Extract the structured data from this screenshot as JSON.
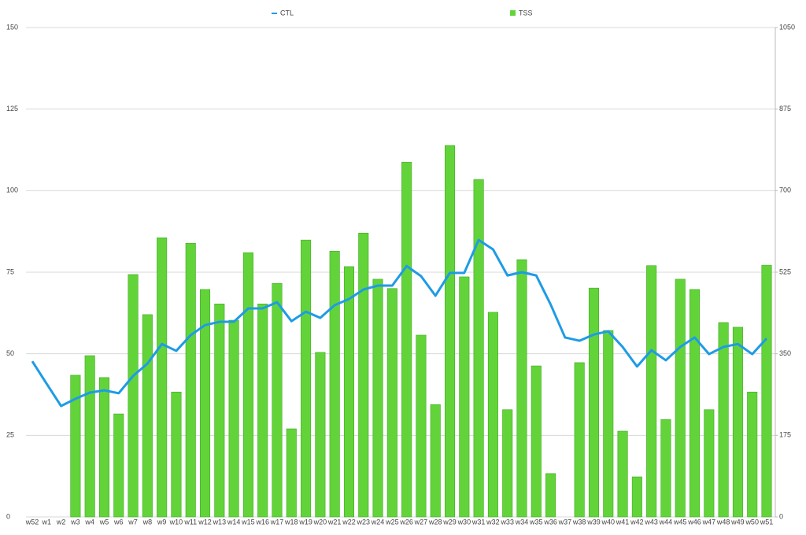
{
  "chart_data": {
    "type": "bar",
    "categories": [
      "w52",
      "w1",
      "w2",
      "w3",
      "w4",
      "w5",
      "w6",
      "w7",
      "w8",
      "w9",
      "w10",
      "w11",
      "w12",
      "w13",
      "w14",
      "w15",
      "w16",
      "w17",
      "w18",
      "w19",
      "w20",
      "w21",
      "w22",
      "w23",
      "w24",
      "w25",
      "w26",
      "w27",
      "w28",
      "w29",
      "w30",
      "w31",
      "w32",
      "w33",
      "w34",
      "w35",
      "w36",
      "w37",
      "w38",
      "w39",
      "w40",
      "w41",
      "w42",
      "w43",
      "w44",
      "w45",
      "w46",
      "w47",
      "w48",
      "w49",
      "w50",
      "w51"
    ],
    "series": [
      {
        "name": "CTL",
        "type": "line",
        "color": "#1e9be6",
        "axis": "y",
        "values": [
          47.7,
          40.8,
          34,
          36.2,
          38.1,
          38.8,
          37.9,
          43.2,
          47,
          53,
          50.9,
          55.7,
          58.8,
          59.8,
          59.8,
          63.9,
          63.9,
          65.8,
          60,
          62.9,
          61,
          64.9,
          66.8,
          69.7,
          70.9,
          70.9,
          76.9,
          73.8,
          67.8,
          74.8,
          74.8,
          84.9,
          82,
          74,
          75,
          74,
          65.1,
          55,
          54,
          55.9,
          56.9,
          52.1,
          46.1,
          51.1,
          48,
          52.1,
          55,
          49.9,
          52.1,
          53,
          49.9,
          54.7
        ]
      },
      {
        "name": "TSS",
        "type": "bar",
        "color": "#62d43a",
        "axis": "y2",
        "values": [
          0,
          0,
          0,
          304,
          346,
          299,
          221,
          520,
          434,
          599,
          268,
          587,
          488,
          457,
          422,
          567,
          457,
          501,
          189,
          594,
          353,
          570,
          537,
          609,
          510,
          490,
          761,
          390,
          241,
          797,
          515,
          724,
          439,
          230,
          552,
          324,
          93,
          0,
          331,
          491,
          400,
          184,
          86,
          539,
          209,
          510,
          488,
          230,
          417,
          407,
          268,
          540
        ]
      }
    ],
    "ylim": [
      0,
      150
    ],
    "yticks": [
      0,
      25,
      50,
      75,
      100,
      125,
      150
    ],
    "y2lim": [
      0,
      1050
    ],
    "y2ticks": [
      0,
      175,
      350,
      525,
      700,
      875,
      1050
    ],
    "grid": true
  }
}
